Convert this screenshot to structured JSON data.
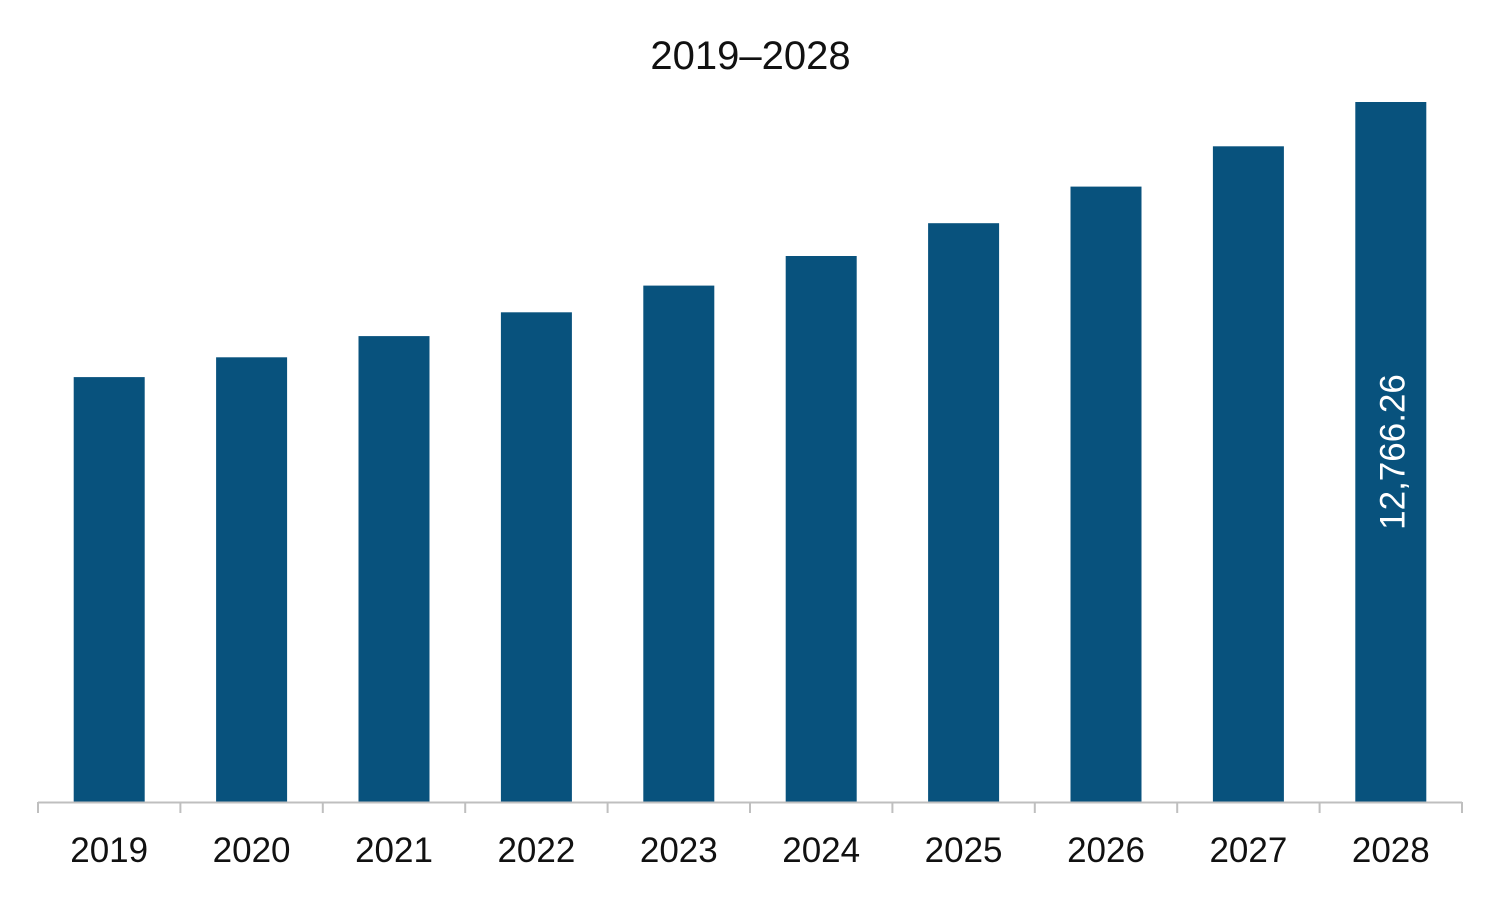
{
  "chart_data": {
    "type": "bar",
    "title": "2019–2028",
    "xlabel": "",
    "ylabel": "",
    "categories": [
      "2019",
      "2020",
      "2021",
      "2022",
      "2023",
      "2024",
      "2025",
      "2026",
      "2027",
      "2028"
    ],
    "values": [
      7749,
      8111,
      8497,
      8931,
      9417,
      9957,
      10555,
      11224,
      11958,
      12766.26
    ],
    "ylim": [
      0,
      13000
    ],
    "data_labels": [
      {
        "category": "2028",
        "text": "12,766.26",
        "orientation": "vertical",
        "placement": "inside"
      }
    ],
    "grid": false,
    "legend": "none",
    "colors": {
      "bar": "#08527D",
      "axis": "#BFBFBF",
      "tick_label": "#111111",
      "data_label": "#FFFFFF"
    }
  }
}
